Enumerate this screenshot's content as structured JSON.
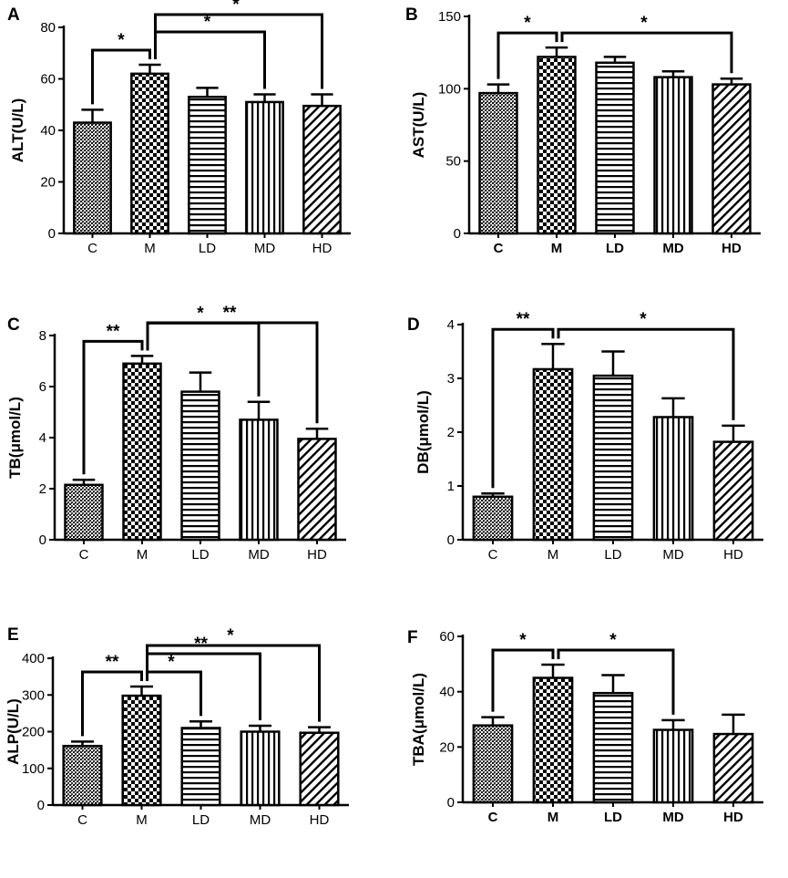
{
  "figure": {
    "categories": [
      "C",
      "M",
      "LD",
      "MD",
      "HD"
    ]
  },
  "chart_data": [
    {
      "panel": "A",
      "type": "bar",
      "ylabel": "ALT(U/L)",
      "ylim": [
        0,
        80
      ],
      "ticks": [
        0,
        20,
        40,
        60,
        80
      ],
      "bold_categories": false,
      "categories": [
        "C",
        "M",
        "LD",
        "MD",
        "HD"
      ],
      "values": [
        43,
        62,
        53,
        51,
        49.5
      ],
      "errors": [
        5,
        3.5,
        3.5,
        3,
        4.5
      ],
      "patterns": [
        "cross",
        "checker",
        "hlines",
        "vlines",
        "diag"
      ],
      "significance": [
        {
          "from": 0,
          "to": 1,
          "label": "*",
          "level": 1
        },
        {
          "from": 1,
          "to": 3,
          "label": "*",
          "level": 2
        },
        {
          "from": 1,
          "to": 4,
          "label": "*",
          "level": 3
        }
      ]
    },
    {
      "panel": "B",
      "type": "bar",
      "ylabel": "AST(U/L)",
      "ylim": [
        0,
        150
      ],
      "ticks": [
        0,
        50,
        100,
        150
      ],
      "bold_categories": true,
      "categories": [
        "C",
        "M",
        "LD",
        "MD",
        "HD"
      ],
      "values": [
        97,
        122,
        118,
        108,
        103
      ],
      "errors": [
        6,
        6.5,
        4,
        4,
        4
      ],
      "patterns": [
        "cross",
        "checker",
        "hlines",
        "vlines",
        "diag"
      ],
      "significance": [
        {
          "from": 0,
          "to": 1,
          "label": "*",
          "level": 1
        },
        {
          "from": 1,
          "to": 4,
          "label": "*",
          "level": 1
        }
      ]
    },
    {
      "panel": "C",
      "type": "bar",
      "ylabel": "TB(μmol/L)",
      "ylim": [
        0,
        8
      ],
      "ticks": [
        0,
        2,
        4,
        6,
        8
      ],
      "bold_categories": false,
      "categories": [
        "C",
        "M",
        "LD",
        "MD",
        "HD"
      ],
      "values": [
        2.15,
        6.9,
        5.8,
        4.7,
        3.95
      ],
      "errors": [
        0.2,
        0.3,
        0.75,
        0.7,
        0.4
      ],
      "patterns": [
        "cross",
        "checker",
        "hlines",
        "vlines",
        "diag"
      ],
      "significance": [
        {
          "from": 0,
          "to": 1,
          "label": "**",
          "level": 1
        },
        {
          "from": 1,
          "to": 3,
          "label": "*",
          "level": 2
        },
        {
          "from": 1,
          "to": 4,
          "label": "**",
          "level": 3
        }
      ]
    },
    {
      "panel": "D",
      "type": "bar",
      "ylabel": "DB(μmol/L)",
      "ylim": [
        0,
        4
      ],
      "ticks": [
        0,
        1,
        2,
        3,
        4
      ],
      "bold_categories": false,
      "categories": [
        "C",
        "M",
        "LD",
        "MD",
        "HD"
      ],
      "values": [
        0.8,
        3.17,
        3.05,
        2.28,
        1.82
      ],
      "errors": [
        0.06,
        0.47,
        0.45,
        0.35,
        0.3
      ],
      "patterns": [
        "cross",
        "checker",
        "hlines",
        "vlines",
        "diag"
      ],
      "significance": [
        {
          "from": 0,
          "to": 1,
          "label": "**",
          "level": 1
        },
        {
          "from": 1,
          "to": 4,
          "label": "*",
          "level": 1
        }
      ]
    },
    {
      "panel": "E",
      "type": "bar",
      "ylabel": "ALP(U/L)",
      "ylim": [
        0,
        400
      ],
      "ticks": [
        0,
        100,
        200,
        300,
        400
      ],
      "bold_categories": false,
      "categories": [
        "C",
        "M",
        "LD",
        "MD",
        "HD"
      ],
      "values": [
        161,
        298,
        210,
        200,
        197
      ],
      "errors": [
        12,
        25,
        18,
        16,
        15
      ],
      "patterns": [
        "cross",
        "checker",
        "hlines",
        "vlines",
        "diag"
      ],
      "significance": [
        {
          "from": 0,
          "to": 1,
          "label": "**",
          "level": 1
        },
        {
          "from": 1,
          "to": 2,
          "label": "*",
          "level": 1
        },
        {
          "from": 1,
          "to": 3,
          "label": "**",
          "level": 2
        },
        {
          "from": 1,
          "to": 4,
          "label": "*",
          "level": 3
        }
      ]
    },
    {
      "panel": "F",
      "type": "bar",
      "ylabel": "TBA(μmol/L)",
      "ylim": [
        0,
        60
      ],
      "ticks": [
        0,
        20,
        40,
        60
      ],
      "bold_categories": true,
      "categories": [
        "C",
        "M",
        "LD",
        "MD",
        "HD"
      ],
      "values": [
        27.8,
        45,
        39.5,
        26.2,
        24.7
      ],
      "errors": [
        3,
        4.8,
        6.5,
        3.5,
        7
      ],
      "patterns": [
        "cross",
        "checker",
        "hlines",
        "vlines",
        "diag"
      ],
      "significance": [
        {
          "from": 0,
          "to": 1,
          "label": "*",
          "level": 1
        },
        {
          "from": 1,
          "to": 3,
          "label": "*",
          "level": 1
        }
      ]
    }
  ]
}
